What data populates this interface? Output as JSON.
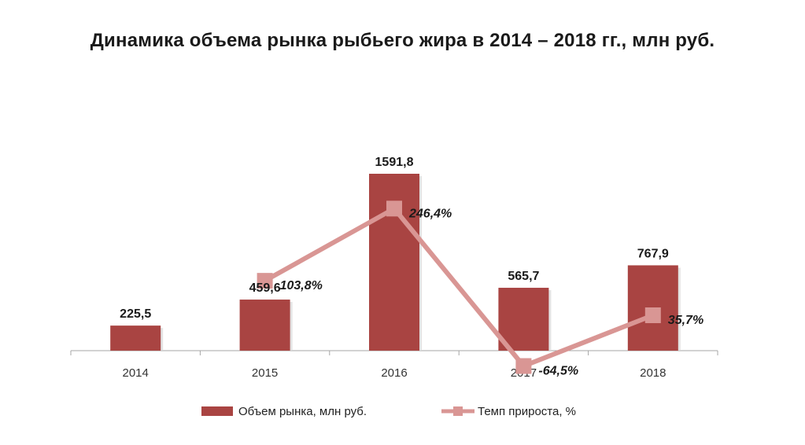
{
  "chart_data": {
    "type": "bar",
    "title": "Динамика объема рынка рыбьего жира в 2014 – 2018 гг., млн руб.",
    "categories": [
      "2014",
      "2015",
      "2016",
      "2017",
      "2018"
    ],
    "series": [
      {
        "name": "Объем рынка, млн руб.",
        "type": "bar",
        "values": [
          225.5,
          459.6,
          1591.8,
          565.7,
          767.9
        ],
        "labels": [
          "225,5",
          "459,6",
          "1591,8",
          "565,7",
          "767,9"
        ],
        "color": "#a94442"
      },
      {
        "name": "Темп прироста, %",
        "type": "line",
        "values": [
          null,
          103.8,
          246.4,
          -64.5,
          35.7
        ],
        "labels": [
          "",
          "103,8%",
          "246,4%",
          "-64,5%",
          "35,7%"
        ],
        "color": "#d99694"
      }
    ],
    "legend_position": "bottom",
    "grid": false
  }
}
